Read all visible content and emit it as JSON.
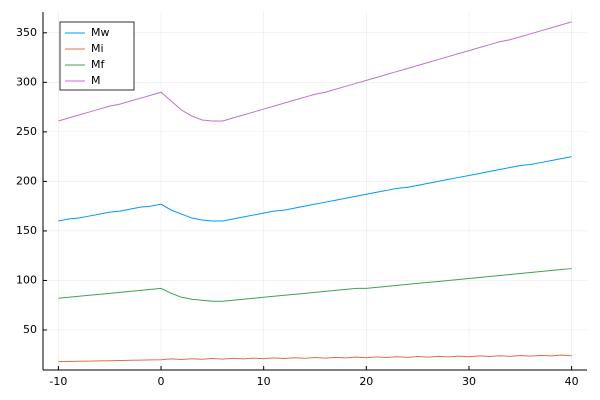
{
  "chart_data": {
    "type": "line",
    "x": [
      -10,
      -9,
      -8,
      -7,
      -6,
      -5,
      -4,
      -3,
      -2,
      -1,
      0,
      1,
      2,
      3,
      4,
      5,
      6,
      7,
      8,
      9,
      10,
      11,
      12,
      13,
      14,
      15,
      16,
      17,
      18,
      19,
      20,
      21,
      22,
      23,
      24,
      25,
      26,
      27,
      28,
      29,
      30,
      31,
      32,
      33,
      34,
      35,
      36,
      37,
      38,
      39,
      40
    ],
    "series": [
      {
        "name": "Mw",
        "color": "#009af9",
        "values": [
          160,
          162,
          163,
          165,
          167,
          169,
          170,
          172,
          174,
          175,
          177,
          171,
          167,
          163,
          161,
          160,
          160,
          162,
          164,
          166,
          168,
          170,
          171,
          173,
          175,
          177,
          179,
          181,
          183,
          185,
          187,
          189,
          191,
          193,
          194,
          196,
          198,
          200,
          202,
          204,
          206,
          208,
          210,
          212,
          214,
          216,
          217,
          219,
          221,
          223,
          225
        ]
      },
      {
        "name": "Mi",
        "color": "#e26f46",
        "values": [
          18,
          18.2,
          18.4,
          18.6,
          18.8,
          19,
          19.2,
          19.4,
          19.6,
          19.8,
          20,
          20.8,
          20.2,
          21,
          20.4,
          21.2,
          20.6,
          21.4,
          20.8,
          21.6,
          21,
          21.8,
          21.2,
          22,
          21.4,
          22.2,
          21.6,
          22.4,
          21.8,
          22.6,
          22,
          22.8,
          22.2,
          23,
          22.4,
          23.2,
          22.6,
          23.4,
          22.8,
          23.6,
          23,
          23.8,
          23.2,
          24,
          23.4,
          24.2,
          23.6,
          24.4,
          23.8,
          24.6,
          24
        ]
      },
      {
        "name": "Mf",
        "color": "#3ea44e",
        "values": [
          82,
          83,
          84,
          85,
          86,
          87,
          88,
          89,
          90,
          91,
          92,
          87,
          83,
          81,
          80,
          79,
          79,
          80,
          81,
          82,
          83,
          84,
          85,
          86,
          87,
          88,
          89,
          90,
          91,
          92,
          92,
          93,
          94,
          95,
          96,
          97,
          98,
          99,
          100,
          101,
          102,
          103,
          104,
          105,
          106,
          107,
          108,
          109,
          110,
          111,
          112
        ]
      },
      {
        "name": "M",
        "color": "#c271d2",
        "values": [
          261,
          264,
          267,
          270,
          273,
          276,
          278,
          281,
          284,
          287,
          290,
          281,
          272,
          266,
          262,
          261,
          261,
          264,
          267,
          270,
          273,
          276,
          279,
          282,
          285,
          288,
          290,
          293,
          296,
          299,
          302,
          305,
          308,
          311,
          314,
          317,
          320,
          323,
          326,
          329,
          332,
          335,
          338,
          341,
          343,
          346,
          349,
          352,
          355,
          358,
          361
        ]
      }
    ],
    "xlim": [
      -11.5,
      41.5
    ],
    "xticks": [
      -10,
      0,
      10,
      20,
      30,
      40
    ],
    "ylim": [
      9.6,
      371
    ],
    "yticks": [
      50,
      100,
      150,
      200,
      250,
      300,
      350
    ],
    "grid": true,
    "legend": "top-left"
  }
}
